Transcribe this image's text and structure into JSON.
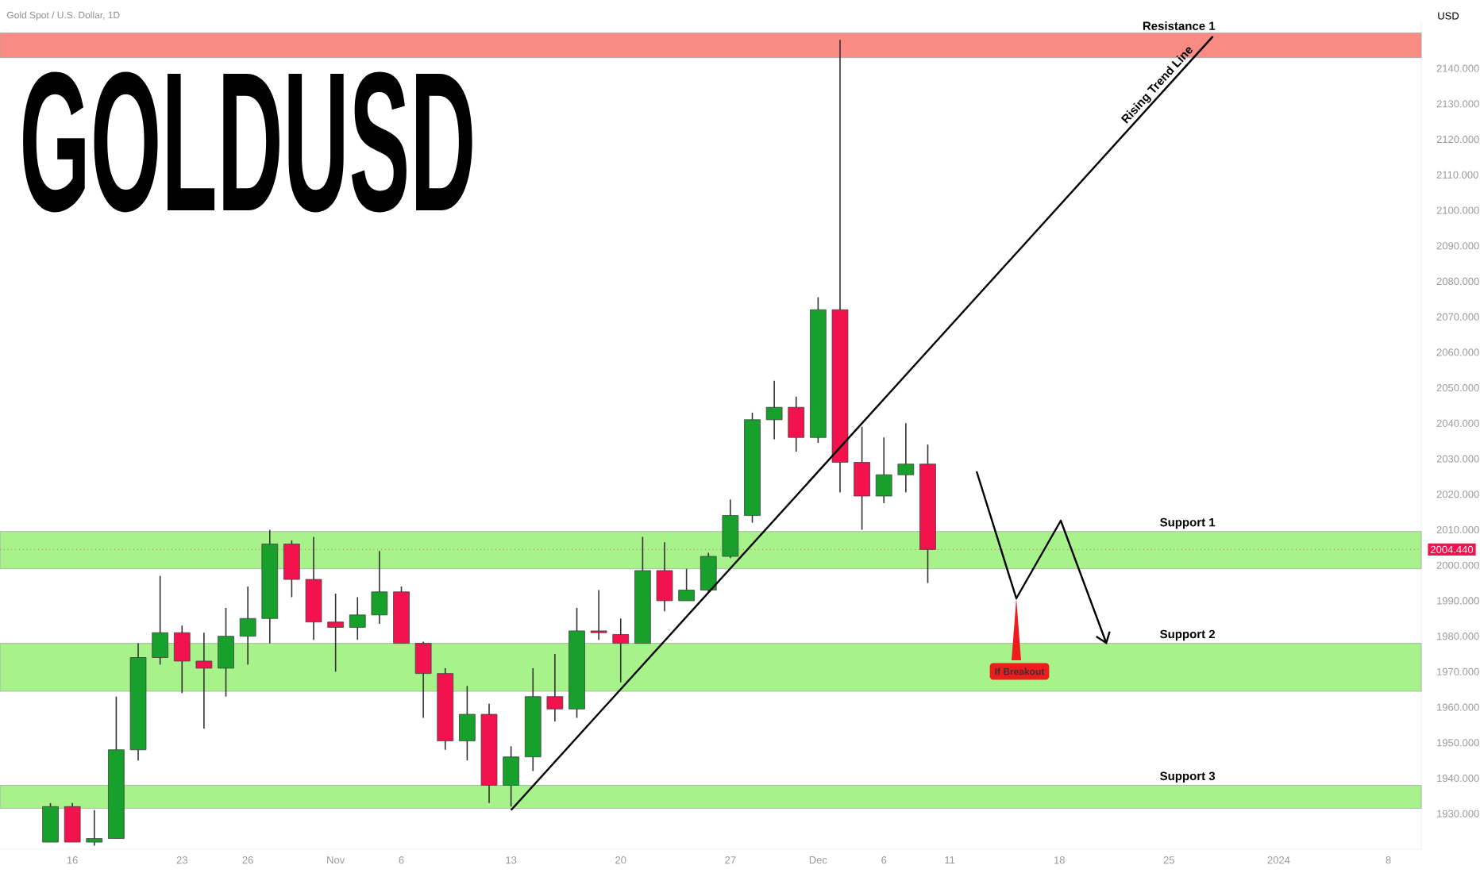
{
  "chart_data": {
    "type": "candlestick",
    "title": "GOLDUSD",
    "subtitle": "Gold Spot / U.S. Dollar, 1D",
    "ylabel": "USD",
    "categories": [
      null,
      "16",
      null,
      null,
      null,
      null,
      "23",
      null,
      null,
      "26",
      null,
      null,
      null,
      "Nov",
      null,
      null,
      "6",
      null,
      null,
      null,
      null,
      "13",
      null,
      null,
      null,
      null,
      "20",
      null,
      null,
      null,
      null,
      "27",
      null,
      null,
      null,
      "Dec",
      null,
      null,
      "6",
      null,
      null,
      "11",
      null,
      null,
      null,
      null,
      "18",
      null,
      null,
      null,
      null,
      "25",
      null,
      null,
      null,
      null,
      "2024",
      null,
      null,
      null,
      null,
      "8",
      null
    ],
    "ohlc": [
      [
        1922,
        1933,
        1922,
        1932
      ],
      [
        1932,
        1933,
        1922,
        1922
      ],
      [
        1922,
        1931,
        1921,
        1923
      ],
      [
        1923,
        1963,
        1923,
        1948
      ],
      [
        1948,
        1978,
        1945,
        1974
      ],
      [
        1974,
        1997,
        1972,
        1981
      ],
      [
        1981,
        1983,
        1964,
        1973
      ],
      [
        1973,
        1981,
        1954,
        1971
      ],
      [
        1971,
        1988,
        1963,
        1980
      ],
      [
        1980,
        1994,
        1972,
        1985
      ],
      [
        1985,
        2010,
        1978,
        2006
      ],
      [
        2006,
        2007,
        1991,
        1996
      ],
      [
        1996,
        2008,
        1979,
        1984
      ],
      [
        1984,
        1992,
        1970,
        1982.5
      ],
      [
        1982.5,
        1991,
        1979,
        1986
      ],
      [
        1986,
        2004,
        1983.5,
        1992.5
      ],
      [
        1992.5,
        1994,
        1978,
        1978
      ],
      [
        1978,
        1978.5,
        1957,
        1969.5
      ],
      [
        1969.5,
        1971,
        1948,
        1950.5
      ],
      [
        1950.5,
        1966,
        1945,
        1958
      ],
      [
        1958,
        1961,
        1933,
        1938
      ],
      [
        1938,
        1949,
        1932,
        1946
      ],
      [
        1946,
        1971,
        1942,
        1963
      ],
      [
        1963,
        1975,
        1956,
        1959.5
      ],
      [
        1959.5,
        1988,
        1957,
        1981.5
      ],
      [
        1981.5,
        1993,
        1979,
        1981
      ],
      [
        1980.5,
        1985,
        1967,
        1978
      ],
      [
        1978,
        2008,
        1978,
        1998.5
      ],
      [
        1998.5,
        2006.5,
        1987,
        1990
      ],
      [
        1990,
        1999,
        1990,
        1993
      ],
      [
        1993,
        2003.5,
        1992,
        2002.5
      ],
      [
        2002.5,
        2018.5,
        2002,
        2014
      ],
      [
        2014,
        2043,
        2012,
        2041
      ],
      [
        2041,
        2052,
        2035.5,
        2044.5
      ],
      [
        2044.5,
        2047.5,
        2032,
        2036
      ],
      [
        2036,
        2075.5,
        2034.5,
        2072
      ],
      [
        2072,
        2148,
        2020.5,
        2029
      ],
      [
        2029,
        2039,
        2010,
        2019.5
      ],
      [
        2019.5,
        2036,
        2017.5,
        2025.5
      ],
      [
        2025.5,
        2040,
        2020.5,
        2028.5
      ],
      [
        2028.5,
        2034,
        1995,
        2004.44
      ],
      null,
      null,
      null,
      null,
      null,
      null,
      null,
      null,
      null,
      null,
      null,
      null,
      null,
      null,
      null,
      null,
      null,
      null,
      null,
      null,
      null,
      null
    ],
    "series": [
      {
        "type": "line",
        "name": "Rising Trend Line",
        "color": "#000000",
        "values": [
          null,
          null,
          null,
          null,
          null,
          null,
          null,
          null,
          null,
          null,
          null,
          null,
          null,
          null,
          null,
          null,
          null,
          null,
          null,
          null,
          null,
          1931,
          null,
          null,
          null,
          null,
          null,
          null,
          null,
          null,
          null,
          null,
          null,
          null,
          null,
          null,
          null,
          null,
          null,
          null,
          null,
          null,
          null,
          null,
          null,
          null,
          null,
          null,
          null,
          null,
          null,
          null,
          null,
          2149,
          null,
          null,
          null,
          null,
          null,
          null,
          null,
          null,
          null
        ]
      }
    ],
    "bands": [
      {
        "axis": "y",
        "from": 2143,
        "to": 2150,
        "label": "Resistance 1",
        "color": "#f98b85"
      },
      {
        "axis": "y",
        "from": 1999,
        "to": 2009.5,
        "label": "Support 1",
        "color": "#a8f28c"
      },
      {
        "axis": "y",
        "from": 1964.5,
        "to": 1978,
        "label": "Support 2",
        "color": "#a8f28c"
      },
      {
        "axis": "y",
        "from": 1931.5,
        "to": 1938,
        "label": "Support 3",
        "color": "#a8f28c"
      }
    ],
    "ref_lines": [
      {
        "axis": "y",
        "value": 2004.44,
        "label": "2004.440",
        "color": "#f2124d",
        "line_style": "dotted"
      }
    ],
    "annotations": [
      "If Breakout"
    ],
    "ylim": [
      1920,
      2153
    ],
    "yticks": [
      {
        "value": 1930,
        "label": "1930.000"
      },
      {
        "value": 1940,
        "label": "1940.000"
      },
      {
        "value": 1950,
        "label": "1950.000"
      },
      {
        "value": 1960,
        "label": "1960.000"
      },
      {
        "value": 1970,
        "label": "1970.000"
      },
      {
        "value": 1980,
        "label": "1980.000"
      },
      {
        "value": 1990,
        "label": "1990.000"
      },
      {
        "value": 2000,
        "label": "2000.000"
      },
      {
        "value": 2010,
        "label": "2010.000"
      },
      {
        "value": 2020,
        "label": "2020.000"
      },
      {
        "value": 2030,
        "label": "2030.000"
      },
      {
        "value": 2040,
        "label": "2040.000"
      },
      {
        "value": 2050,
        "label": "2050.000"
      },
      {
        "value": 2060,
        "label": "2060.000"
      },
      {
        "value": 2070,
        "label": "2070.000"
      },
      {
        "value": 2080,
        "label": "2080.000"
      },
      {
        "value": 2090,
        "label": "2090.000"
      },
      {
        "value": 2100,
        "label": "2100.000"
      },
      {
        "value": 2110,
        "label": "2110.000"
      },
      {
        "value": 2120,
        "label": "2120.000"
      },
      {
        "value": 2130,
        "label": "2130.000"
      },
      {
        "value": 2140,
        "label": "2140.000"
      }
    ]
  }
}
